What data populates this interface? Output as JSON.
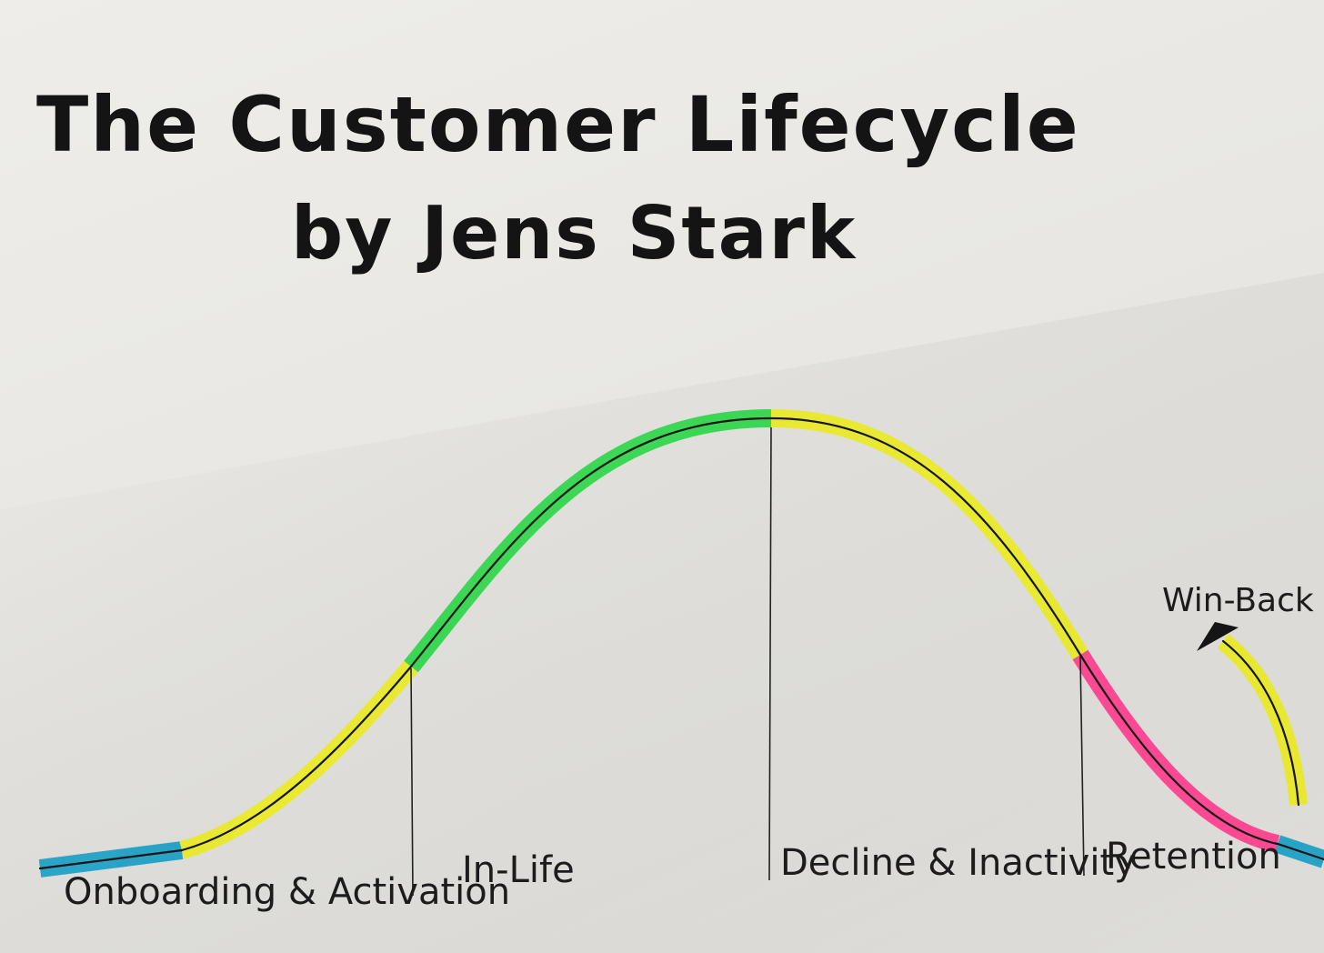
{
  "title": {
    "line1": "The Customer Lifecycle",
    "line2": "by Jens Stark"
  },
  "stages": [
    {
      "id": "onboarding",
      "label": "Onboarding & Activation"
    },
    {
      "id": "in-life",
      "label": "In-Life"
    },
    {
      "id": "decline",
      "label": "Decline & Inactivity"
    },
    {
      "id": "retention",
      "label": "Retention"
    }
  ],
  "annotation": {
    "label": "Win-Back"
  },
  "colors": {
    "highlight_blue": "#1a9fc4",
    "highlight_yellow": "#eaea25",
    "highlight_green": "#2fd64a",
    "highlight_pink": "#ff3d8d",
    "ink": "#141414"
  }
}
